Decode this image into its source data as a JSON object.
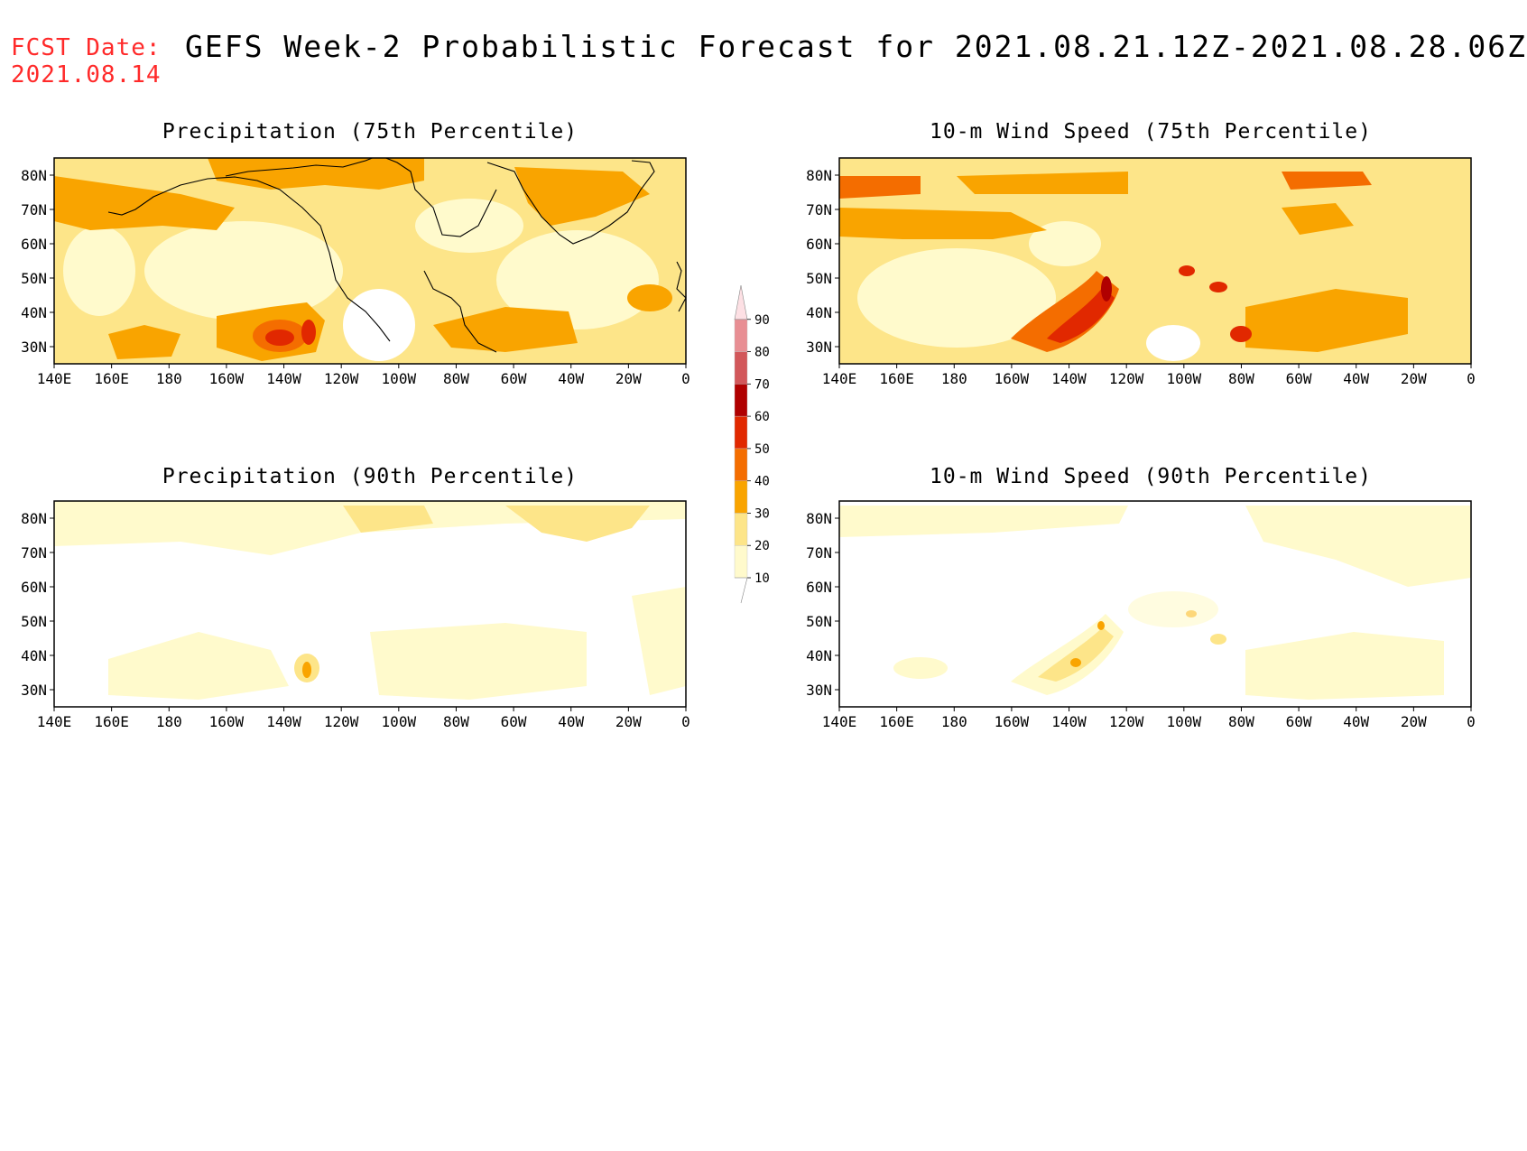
{
  "header": {
    "fcst_label": "FCST Date:",
    "fcst_date": "2021.08.14",
    "title": "GEFS Week-2 Probabilistic Forecast for 2021.08.21.12Z-2021.08.28.06Z"
  },
  "panels": [
    {
      "id": "precip75",
      "title": "Precipitation (75th Percentile)"
    },
    {
      "id": "wind75",
      "title": "10-m Wind Speed (75th Percentile)"
    },
    {
      "id": "precip90",
      "title": "Precipitation (90th Percentile)"
    },
    {
      "id": "wind90",
      "title": "10-m Wind Speed (90th Percentile)"
    }
  ],
  "axes": {
    "lon_ticks": [
      "140E",
      "160E",
      "180",
      "160W",
      "140W",
      "120W",
      "100W",
      "80W",
      "60W",
      "40W",
      "20W",
      "0"
    ],
    "lat_ticks": [
      "80N",
      "70N",
      "60N",
      "50N",
      "40N",
      "30N"
    ],
    "lon_range": [
      "140E",
      "0"
    ],
    "lat_range": [
      "25N",
      "85N"
    ]
  },
  "colorbar": {
    "levels": [
      "10",
      "20",
      "30",
      "40",
      "50",
      "60",
      "70",
      "80",
      "90"
    ],
    "colors": [
      "#fffacc",
      "#fde589",
      "#f9a400",
      "#f46d00",
      "#e12800",
      "#b00000",
      "#d2575a",
      "#e88e93",
      "#f6b4bb",
      "#fde0e4"
    ]
  }
}
